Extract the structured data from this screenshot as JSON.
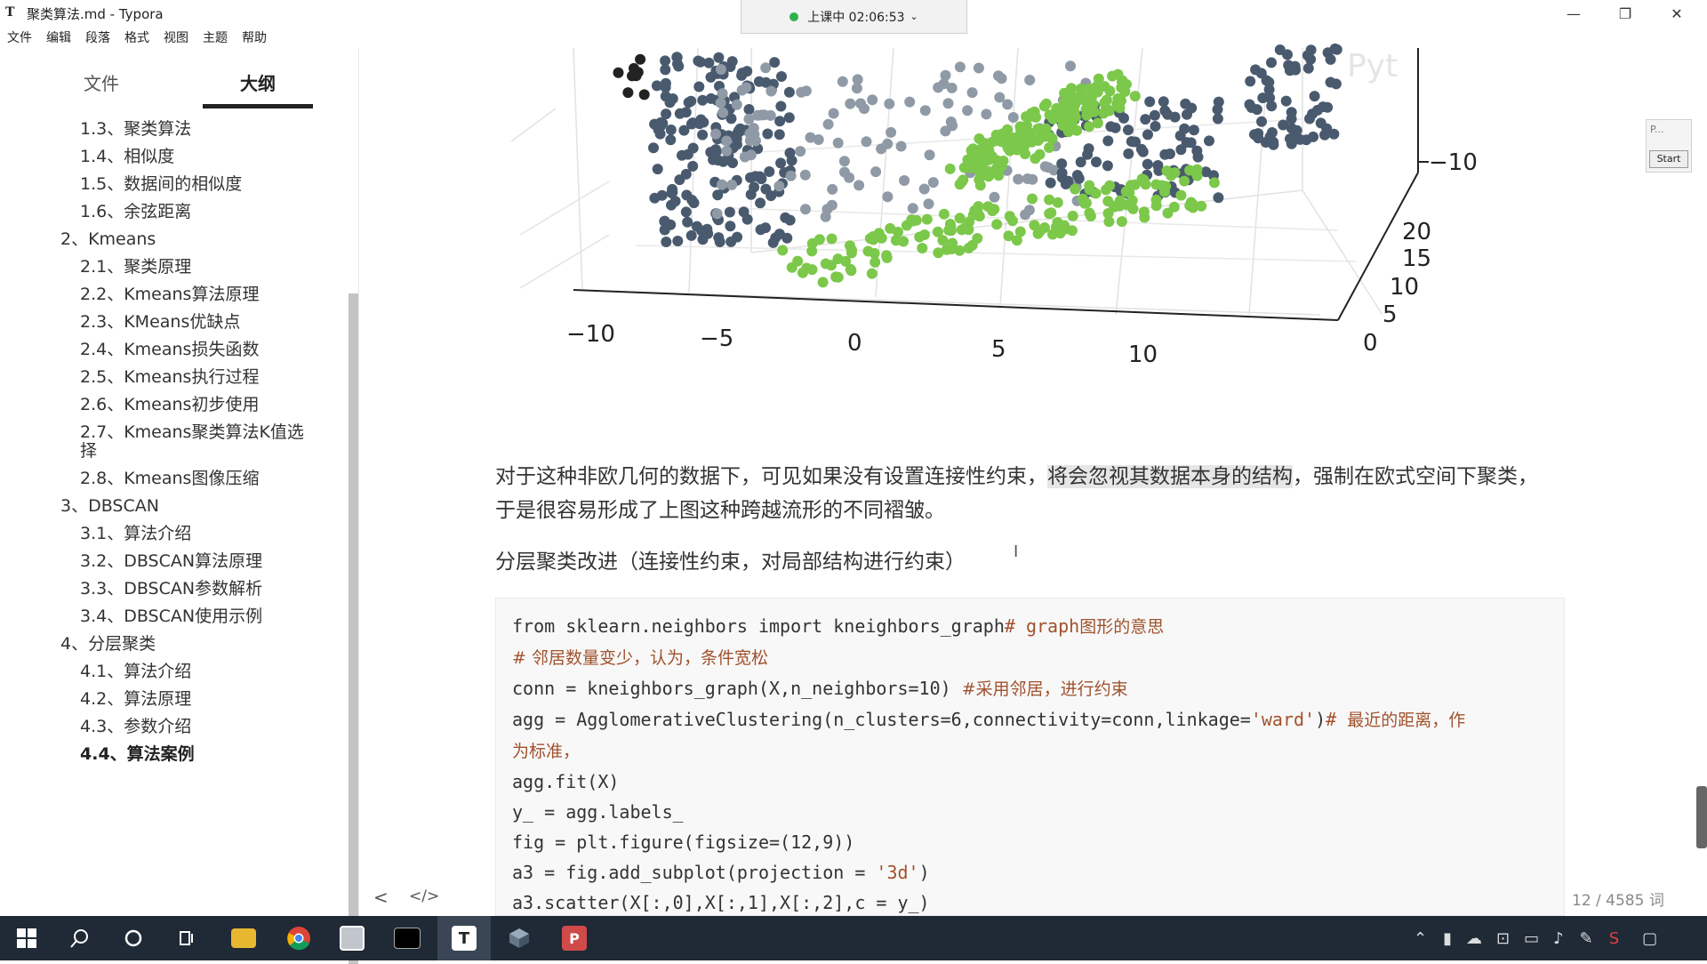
{
  "window": {
    "app_icon": "T",
    "title": "聚类算法.md - Typora",
    "recording": "上课中 02:06:53",
    "controls": [
      "—",
      "❐",
      "✕"
    ]
  },
  "menu": [
    "文件",
    "编辑",
    "段落",
    "格式",
    "视图",
    "主题",
    "帮助"
  ],
  "sidebar": {
    "tab_files": "文件",
    "tab_outline": "大纲",
    "outline": [
      {
        "label": "1.3、聚类算法",
        "level": 2
      },
      {
        "label": "1.4、相似度",
        "level": 2
      },
      {
        "label": "1.5、数据间的相似度",
        "level": 2
      },
      {
        "label": "1.6、余弦距离",
        "level": 2
      },
      {
        "label": "2、Kmeans",
        "level": 1
      },
      {
        "label": "2.1、聚类原理",
        "level": 2
      },
      {
        "label": "2.2、Kmeans算法原理",
        "level": 2
      },
      {
        "label": "2.3、KMeans优缺点",
        "level": 2
      },
      {
        "label": "2.4、Kmeans损失函数",
        "level": 2
      },
      {
        "label": "2.5、Kmeans执行过程",
        "level": 2
      },
      {
        "label": "2.6、Kmeans初步使用",
        "level": 2
      },
      {
        "label": "2.7、Kmeans聚类算法K值选",
        "level": 2
      },
      {
        "label": "择",
        "level": 2
      },
      {
        "label": "2.8、Kmeans图像压缩",
        "level": 2
      },
      {
        "label": "3、DBSCAN",
        "level": 1
      },
      {
        "label": "3.1、算法介绍",
        "level": 2
      },
      {
        "label": "3.2、DBSCAN算法原理",
        "level": 2
      },
      {
        "label": "3.3、DBSCAN参数解析",
        "level": 2
      },
      {
        "label": "3.4、DBSCAN使用示例",
        "level": 2
      },
      {
        "label": "4、分层聚类",
        "level": 1
      },
      {
        "label": "4.1、算法介绍",
        "level": 2
      },
      {
        "label": "4.2、算法原理",
        "level": 2
      },
      {
        "label": "4.3、参数介绍",
        "level": 2
      },
      {
        "label": "4.4、算法案例",
        "level": 2,
        "active": true
      }
    ]
  },
  "plot": {
    "x_ticks": [
      "−10",
      "−5",
      "0",
      "5",
      "10"
    ],
    "y_ticks": [
      "0",
      "5",
      "10",
      "15",
      "20"
    ],
    "z_ticks": [
      "−10"
    ],
    "watermark": "Pyt",
    "colors": {
      "dark": "#4a5a6e",
      "green": "#7cc84a",
      "grey": "#8f9aa6",
      "black": "#222222"
    }
  },
  "content": {
    "para_before": "对于这种非欧几何的数据下，可见如果没有设置连接性约束，",
    "para_highlight": "将会忽视其数据本身的结构",
    "para_after": "，强制在欧式空间下聚类，于是很容易形成了上图这种跨越流形的不同褶皱。",
    "heading": "分层聚类改进（连接性约束，对局部结构进行约束）",
    "code": {
      "l1_code": "from sklearn.neighbors import kneighbors_graph",
      "l1_comment_hash": "# graph",
      "l1_comment_text": "图形的意思",
      "l2_comment": "# 邻居数量变少，认为，条件宽松",
      "l3_code": "conn = kneighbors_graph(X,n_neighbors=10) ",
      "l3_comment": "#采用邻居，进行约束",
      "l4_code_a": "agg = AgglomerativeClustering(n_clusters=6,connectivity=conn,linkage=",
      "l4_str": "'ward'",
      "l4_code_b": ")",
      "l4_comment_hash": "# ",
      "l4_comment_text": "最近的距离，作",
      "l5_comment": "为标准，",
      "l6": "agg.fit(X)",
      "l7": "y_ = agg.labels_",
      "l8": "fig = plt.figure(figsize=(12,9))",
      "l9_a": "a3 = fig.add_subplot(projection = ",
      "l9_str": "'3d'",
      "l9_b": ")",
      "l10": "a3.scatter(X[:,0],X[:,1],X[:,2],c = y_)"
    }
  },
  "footer": {
    "back": "<",
    "source": "</>",
    "wordcount": "12 / 4585 词"
  },
  "mini_widget": {
    "label": "P...",
    "button": "Start"
  },
  "taskbar": {
    "apps": [
      "windows-start",
      "search",
      "cortana",
      "task-view",
      "file-explorer",
      "chrome",
      "image-viewer",
      "terminal",
      "typora",
      "app-3d",
      "presentation"
    ],
    "typora_label": "T"
  }
}
